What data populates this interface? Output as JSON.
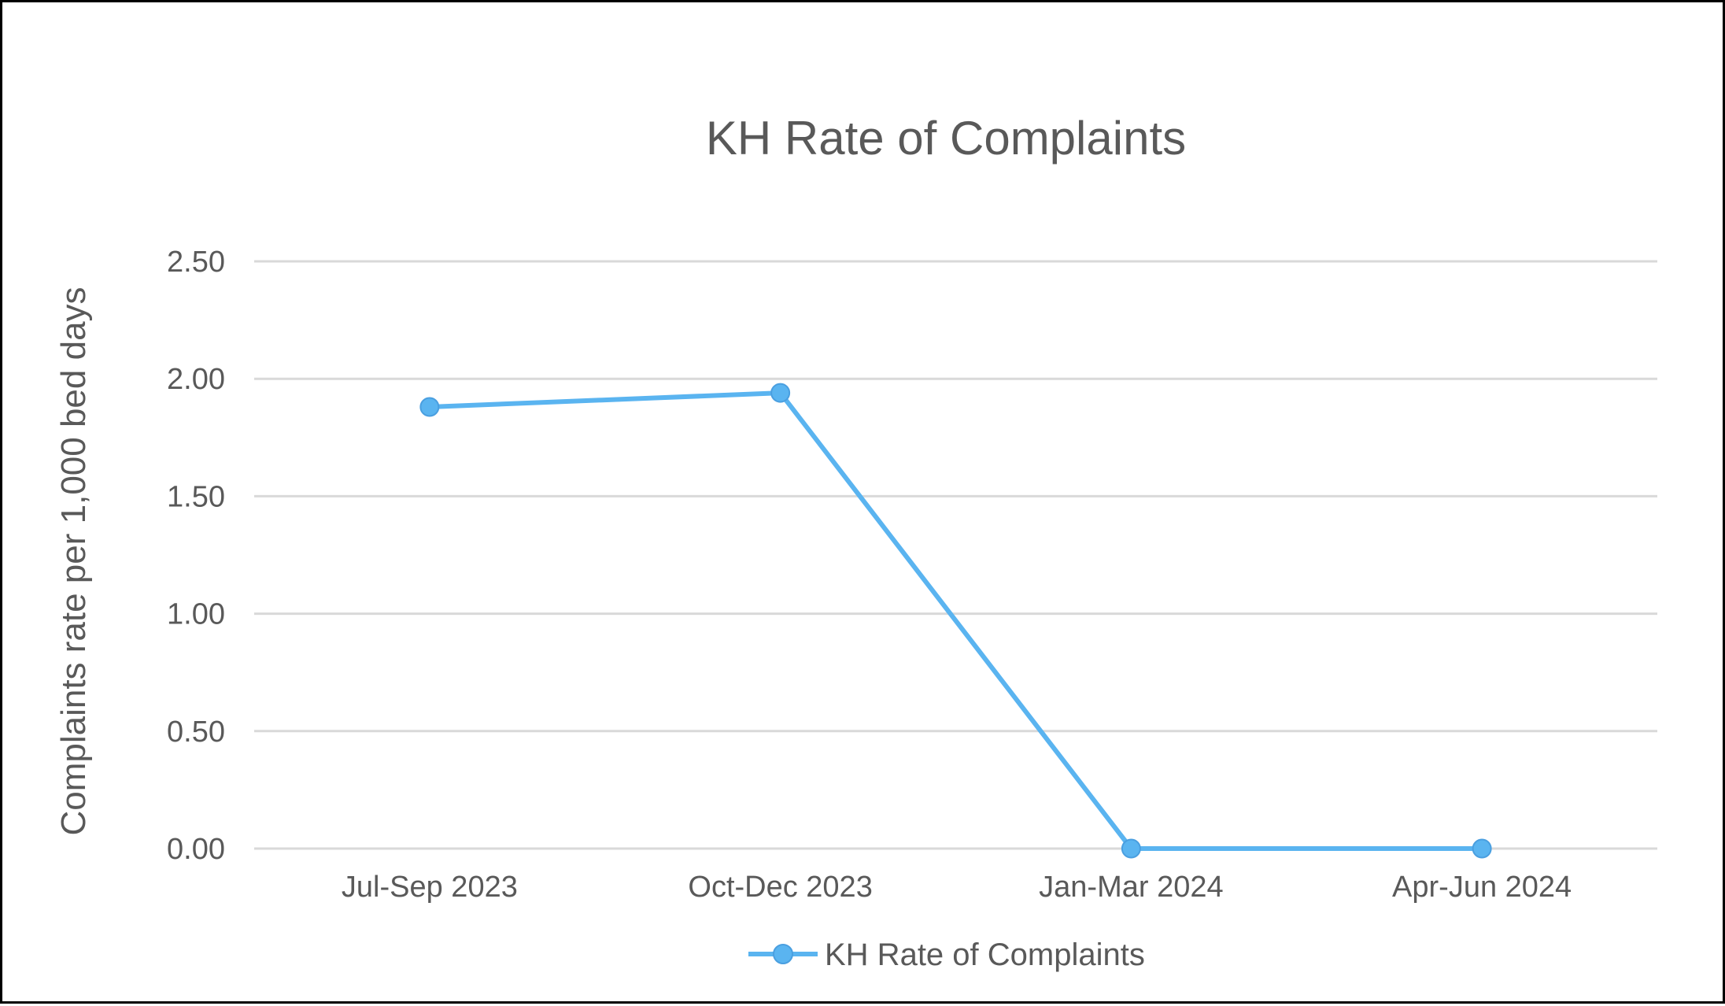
{
  "chart_data": {
    "type": "line",
    "title": "KH Rate of Complaints",
    "ylabel": "Complaints rate  per 1,000  bed days",
    "xlabel": "",
    "categories": [
      "Jul-Sep 2023",
      "Oct-Dec 2023",
      "Jan-Mar 2024",
      "Apr-Jun 2024"
    ],
    "series": [
      {
        "name": "KH Rate of Complaints",
        "values": [
          1.88,
          1.94,
          0.0,
          0.0
        ],
        "color": "#5AB4F0",
        "marker_edge_color": "#4A9FE0"
      }
    ],
    "ylim": [
      0,
      2.5
    ],
    "yticks": [
      "0.00",
      "0.50",
      "1.00",
      "1.50",
      "2.00",
      "2.50"
    ],
    "grid": true,
    "legend_position": "bottom"
  }
}
